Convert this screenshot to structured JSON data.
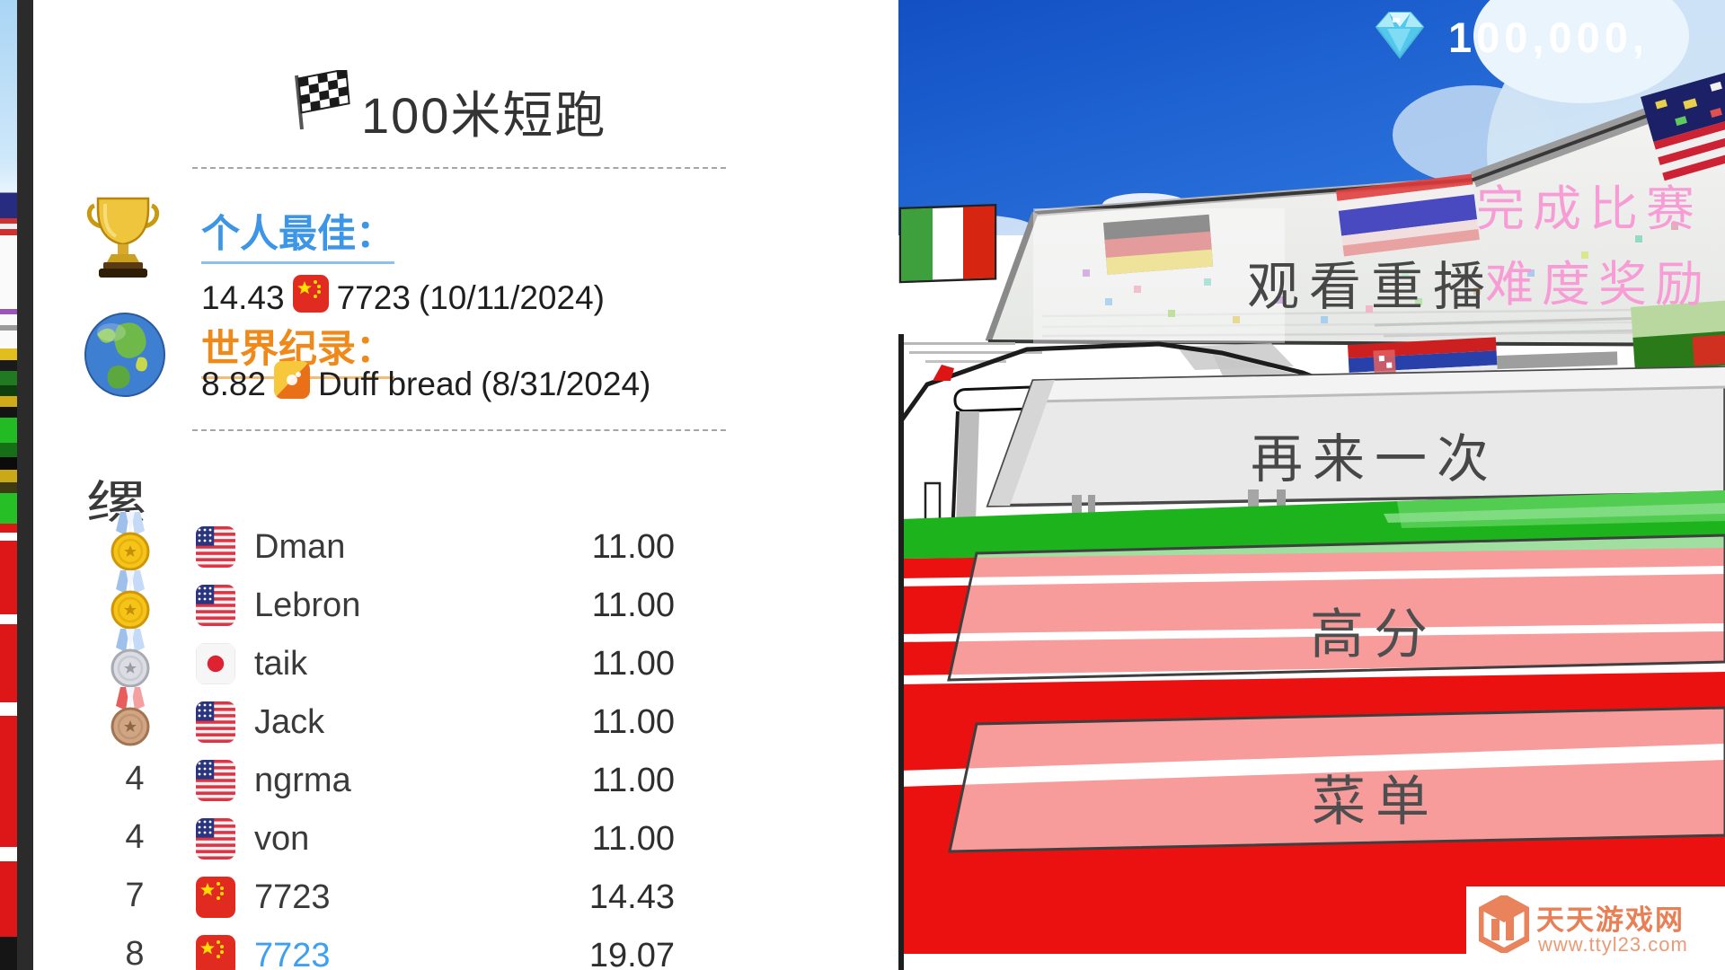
{
  "title": {
    "icon": "checkered-flag-icon",
    "text": "100米短跑"
  },
  "records": {
    "personal_best": {
      "icon": "trophy-icon",
      "label": "个人最佳：",
      "time": "14.43",
      "flag": "cn",
      "player": "7723",
      "date": "(10/11/2024)"
    },
    "world_record": {
      "icon": "globe-icon",
      "label": "世界纪录：",
      "time": "8.82",
      "flag": "bt",
      "player": "Duff bread",
      "date": "(8/31/2024)"
    }
  },
  "leaderboard": {
    "header_char": "缧",
    "rows": [
      {
        "rank": "1",
        "medal": "gold",
        "flag": "us",
        "name": "Dman",
        "time": "11.00",
        "highlight": false
      },
      {
        "rank": "1",
        "medal": "gold",
        "flag": "us",
        "name": "Lebron",
        "time": "11.00",
        "highlight": false
      },
      {
        "rank": "2",
        "medal": "silver",
        "flag": "jp",
        "name": "taik",
        "time": "11.00",
        "highlight": false
      },
      {
        "rank": "3",
        "medal": "bronze",
        "flag": "us",
        "name": "Jack",
        "time": "11.00",
        "highlight": false
      },
      {
        "rank": "4",
        "medal": null,
        "flag": "us",
        "name": "ngrma",
        "time": "11.00",
        "highlight": false
      },
      {
        "rank": "4",
        "medal": null,
        "flag": "us",
        "name": "von",
        "time": "11.00",
        "highlight": false
      },
      {
        "rank": "7",
        "medal": null,
        "flag": "cn",
        "name": "7723",
        "time": "14.43",
        "highlight": false
      },
      {
        "rank": "8",
        "medal": null,
        "flag": "cn",
        "name": "7723",
        "time": "19.07",
        "highlight": true
      }
    ]
  },
  "hud": {
    "currency_icon": "diamond-icon",
    "currency_value": "100,000,",
    "notice_line1": "完成比赛",
    "notice_line2": "难度奖励 +"
  },
  "menu_buttons": [
    {
      "id": "watch-replay",
      "label": "观看重播"
    },
    {
      "id": "retry",
      "label": "再来一次"
    },
    {
      "id": "high-score",
      "label": "高分"
    },
    {
      "id": "menu",
      "label": "菜单"
    }
  ],
  "watermark": {
    "site_name": "天天游戏网",
    "url": "www.ttyl23.com"
  },
  "colors": {
    "accent_blue": "#3d95e6",
    "accent_orange": "#ef8a1a",
    "highlight_name": "#3da0f0",
    "hud_pink": "#f79cd4",
    "track_red": "#ec1111",
    "field_green": "#1db31d",
    "sky_blue": "#1a64d8",
    "watermark_orange": "#e87f55"
  }
}
